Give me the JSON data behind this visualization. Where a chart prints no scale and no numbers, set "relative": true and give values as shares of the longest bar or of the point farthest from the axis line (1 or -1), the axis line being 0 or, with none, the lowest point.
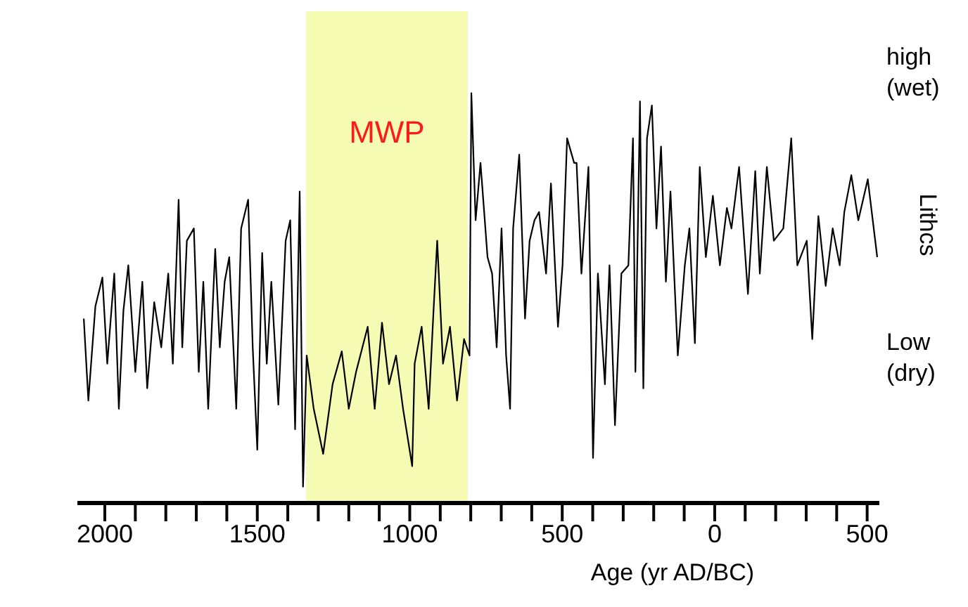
{
  "chart_data": {
    "type": "line",
    "relative": true,
    "xlabel": "Age (yr AD/BC)",
    "ylabel": "Lithcs",
    "annotations": [
      "high (wet)",
      "Low (dry)"
    ],
    "xlim": [
      2090,
      -540
    ],
    "xticks": [
      2000,
      {
        "value": 1900,
        "label": null
      },
      {
        "value": 1800,
        "label": null
      },
      {
        "value": 1700,
        "label": null
      },
      {
        "value": 1600,
        "label": null
      },
      1500,
      {
        "value": 1400,
        "label": null
      },
      {
        "value": 1300,
        "label": null
      },
      {
        "value": 1200,
        "label": null
      },
      {
        "value": 1100,
        "label": null
      },
      1000,
      {
        "value": 900,
        "label": null
      },
      {
        "value": 800,
        "label": null
      },
      {
        "value": 700,
        "label": null
      },
      {
        "value": 600,
        "label": null
      },
      500,
      {
        "value": 400,
        "label": null
      },
      {
        "value": 300,
        "label": null
      },
      {
        "value": 200,
        "label": null
      },
      {
        "value": 100,
        "label": null
      },
      0,
      {
        "value": -100,
        "label": null
      },
      {
        "value": -200,
        "label": null
      },
      {
        "value": -300,
        "label": null
      },
      {
        "value": -400,
        "label": null
      },
      {
        "value": -500,
        "label": "500"
      }
    ],
    "bands": [
      {
        "axis": "x",
        "from": 1340,
        "to": 810,
        "label": "MWP",
        "color": "#f6fbb4"
      }
    ],
    "marker": "none",
    "line_style": "solid",
    "grid": false,
    "legend": false,
    "x": [
      2069,
      2054,
      2031,
      2008,
      1992,
      1969,
      1954,
      1939,
      1923,
      1900,
      1877,
      1861,
      1838,
      1815,
      1792,
      1777,
      1758,
      1746,
      1731,
      1708,
      1692,
      1677,
      1661,
      1638,
      1623,
      1607,
      1592,
      1569,
      1553,
      1530,
      1515,
      1500,
      1484,
      1469,
      1454,
      1431,
      1407,
      1392,
      1376,
      1361,
      1350,
      1338,
      1315,
      1284,
      1253,
      1223,
      1200,
      1176,
      1138,
      1115,
      1091,
      1068,
      1045,
      1022,
      992,
      984,
      961,
      938,
      922,
      910,
      891,
      868,
      845,
      822,
      804,
      798,
      784,
      768,
      745,
      730,
      715,
      699,
      684,
      671,
      661,
      641,
      622,
      607,
      591,
      576,
      553,
      537,
      514,
      499,
      484,
      461,
      453,
      437,
      414,
      399,
      383,
      360,
      345,
      327,
      306,
      283,
      268,
      260,
      245,
      234,
      222,
      206,
      191,
      176,
      160,
      145,
      121,
      98,
      83,
      65,
      49,
      29,
      6,
      -17,
      -40,
      -55,
      -80,
      -109,
      -133,
      -148,
      -171,
      -194,
      -225,
      -251,
      -271,
      -302,
      -320,
      -340,
      -364,
      -387,
      -410,
      -425,
      -448,
      -471,
      -502,
      -533
    ],
    "series": [
      {
        "color": "#000000",
        "values": [
          0.45,
          0.25,
          0.48,
          0.55,
          0.34,
          0.56,
          0.23,
          0.47,
          0.58,
          0.32,
          0.54,
          0.28,
          0.49,
          0.38,
          0.56,
          0.34,
          0.74,
          0.38,
          0.64,
          0.67,
          0.32,
          0.54,
          0.23,
          0.62,
          0.38,
          0.54,
          0.6,
          0.23,
          0.67,
          0.74,
          0.38,
          0.13,
          0.61,
          0.34,
          0.54,
          0.24,
          0.64,
          0.69,
          0.18,
          0.76,
          0.04,
          0.36,
          0.23,
          0.12,
          0.29,
          0.37,
          0.23,
          0.32,
          0.43,
          0.23,
          0.44,
          0.29,
          0.36,
          0.23,
          0.09,
          0.34,
          0.43,
          0.23,
          0.47,
          0.64,
          0.34,
          0.43,
          0.25,
          0.4,
          0.36,
          1.0,
          0.69,
          0.83,
          0.6,
          0.56,
          0.38,
          0.67,
          0.36,
          0.23,
          0.67,
          0.85,
          0.45,
          0.64,
          0.69,
          0.71,
          0.56,
          0.78,
          0.43,
          0.58,
          0.89,
          0.83,
          0.83,
          0.56,
          0.82,
          0.11,
          0.56,
          0.29,
          0.58,
          0.19,
          0.56,
          0.58,
          0.89,
          0.32,
          0.98,
          0.28,
          0.89,
          0.97,
          0.67,
          0.87,
          0.54,
          0.76,
          0.36,
          0.58,
          0.67,
          0.39,
          0.82,
          0.6,
          0.75,
          0.58,
          0.72,
          0.67,
          0.82,
          0.51,
          0.81,
          0.56,
          0.82,
          0.64,
          0.67,
          0.89,
          0.58,
          0.64,
          0.4,
          0.7,
          0.53,
          0.67,
          0.58,
          0.71,
          0.8,
          0.69,
          0.79,
          0.6
        ]
      }
    ]
  }
}
